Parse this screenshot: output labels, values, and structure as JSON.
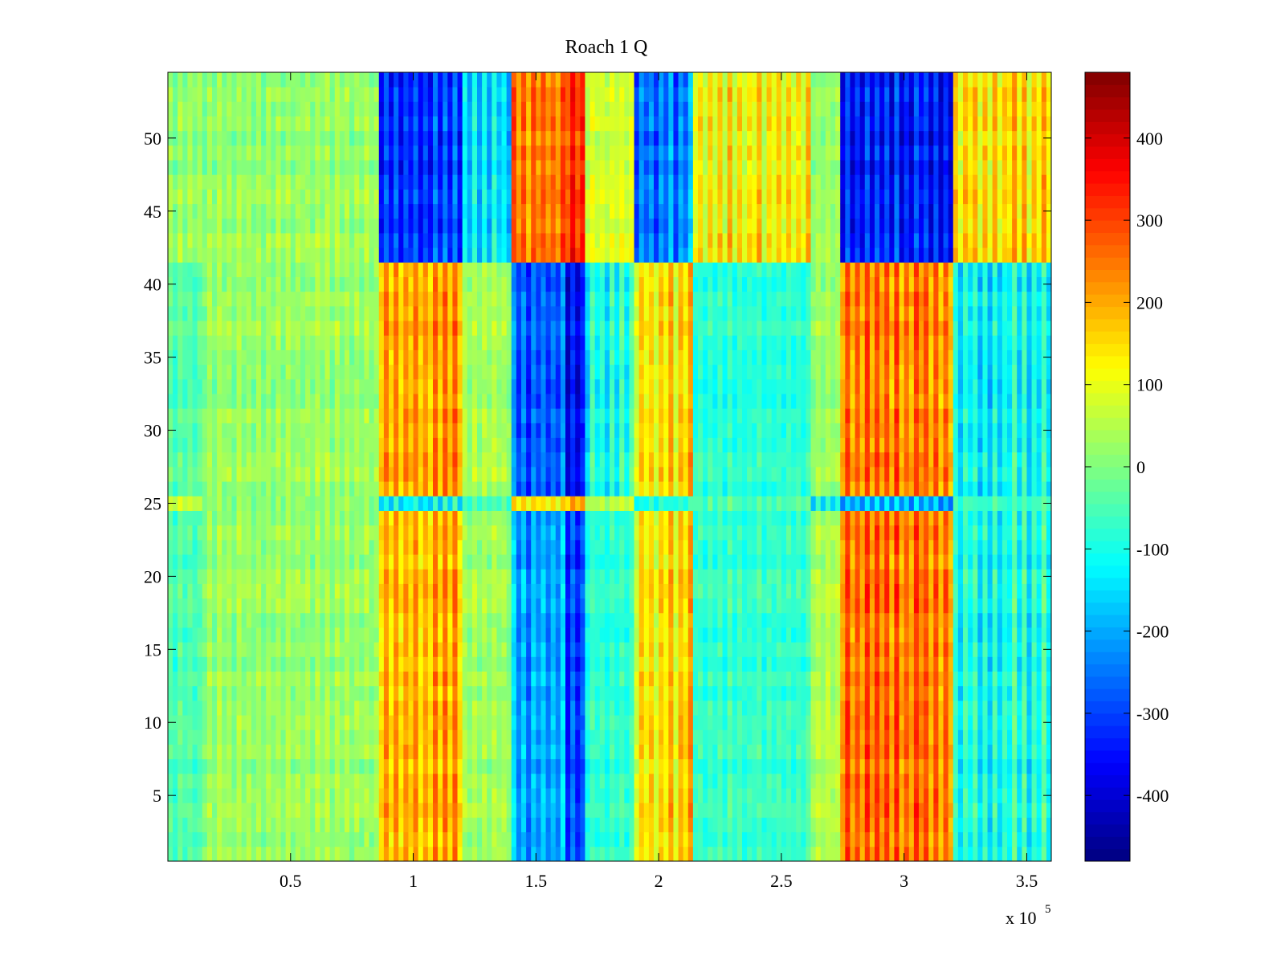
{
  "chart_data": {
    "type": "heatmap",
    "title": "Roach 1 Q",
    "xlabel": "",
    "ylabel": "",
    "x_scale_label": "x 10",
    "x_scale_exponent": "5",
    "xlim": [
      0,
      3.6
    ],
    "ylim": [
      0.5,
      54.5
    ],
    "x_ticks": [
      0.5,
      1,
      1.5,
      2,
      2.5,
      3,
      3.5
    ],
    "x_tick_labels": [
      "0.5",
      "1",
      "1.5",
      "2",
      "2.5",
      "3",
      "3.5"
    ],
    "y_ticks": [
      5,
      10,
      15,
      20,
      25,
      30,
      35,
      40,
      45,
      50
    ],
    "y_tick_labels": [
      "5",
      "10",
      "15",
      "20",
      "25",
      "30",
      "35",
      "40",
      "45",
      "50"
    ],
    "colorbar": {
      "colormap": "jet",
      "clim": [
        -480,
        480
      ],
      "ticks": [
        -400,
        -300,
        -200,
        -100,
        0,
        100,
        200,
        300,
        400
      ],
      "tick_labels": [
        "-400",
        "-300",
        "-200",
        "-100",
        "0",
        "100",
        "200",
        "300",
        "400"
      ]
    },
    "rows": 54,
    "grid": false,
    "column_regions": [
      {
        "x_range": [
          0,
          0.15
        ],
        "rows_42_54": 20,
        "rows_26_41": -40,
        "rows_1_24": -50,
        "row_25": 80
      },
      {
        "x_range": [
          0.15,
          0.86
        ],
        "rows_42_54": 20,
        "rows_26_41": 20,
        "rows_1_24": 20,
        "row_25": 20
      },
      {
        "x_range": [
          0.86,
          1.2
        ],
        "rows_42_54": -320,
        "rows_26_41": 200,
        "rows_1_24": 180,
        "row_25": -120
      },
      {
        "x_range": [
          1.2,
          1.4
        ],
        "rows_42_54": -150,
        "rows_26_41": 40,
        "rows_1_24": 30,
        "row_25": -40
      },
      {
        "x_range": [
          1.4,
          1.62
        ],
        "rows_42_54": 250,
        "rows_26_41": -270,
        "rows_1_24": -200,
        "row_25": 150
      },
      {
        "x_range": [
          1.62,
          1.7
        ],
        "rows_42_54": 320,
        "rows_26_41": -360,
        "rows_1_24": -300,
        "row_25": 200
      },
      {
        "x_range": [
          1.7,
          1.9
        ],
        "rows_42_54": 80,
        "rows_26_41": -100,
        "rows_1_24": -80,
        "row_25": 60
      },
      {
        "x_range": [
          1.9,
          2.15
        ],
        "rows_42_54": -240,
        "rows_26_41": 150,
        "rows_1_24": 150,
        "row_25": -80
      },
      {
        "x_range": [
          2.15,
          2.62
        ],
        "rows_42_54": 130,
        "rows_26_41": -80,
        "rows_1_24": -70,
        "row_25": -30
      },
      {
        "x_range": [
          2.62,
          2.75
        ],
        "rows_42_54": 20,
        "rows_26_41": 20,
        "rows_1_24": 40,
        "row_25": -110
      },
      {
        "x_range": [
          2.75,
          3.2
        ],
        "rows_42_54": -340,
        "rows_26_41": 240,
        "rows_1_24": 250,
        "row_25": -180
      },
      {
        "x_range": [
          3.2,
          3.6
        ],
        "rows_42_54": 150,
        "rows_26_41": -120,
        "rows_1_24": -100,
        "row_25": -50
      }
    ]
  }
}
